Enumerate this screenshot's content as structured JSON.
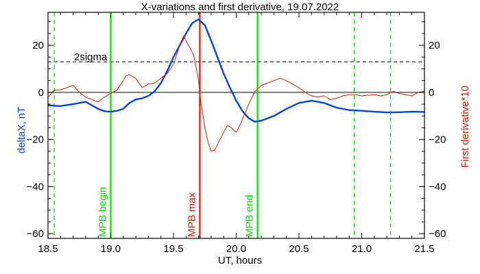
{
  "chart_data": {
    "type": "line",
    "title": "X-variations and first derivative, 19.07.2022",
    "xlabel": "UT, hours",
    "ylabel_left": "deltaX, nT",
    "ylabel_right": "First derivative*10",
    "xlim": [
      18.5,
      21.5
    ],
    "ylim": [
      -62,
      34
    ],
    "x_ticks": [
      18.5,
      19.0,
      19.5,
      20.0,
      20.5,
      21.0,
      21.5
    ],
    "x_tick_labels": [
      "18.5",
      "19.0",
      "19.5",
      "20.0",
      "20.5",
      "21.0",
      "21.5"
    ],
    "y_ticks": [
      20,
      0,
      -20,
      -40,
      -60
    ],
    "y_tick_labels": [
      "20",
      "0",
      "−20",
      "−40",
      "−60"
    ],
    "sigma_line": {
      "label": "2sigma",
      "y": 13
    },
    "zero_line": {
      "y": 0
    },
    "vlines": [
      {
        "x": 18.55,
        "style": "dashed",
        "color": "#00dd00",
        "label": ""
      },
      {
        "x": 19.0,
        "style": "solid",
        "color": "#00dd00",
        "label": "MPB begin"
      },
      {
        "x": 19.71,
        "style": "solid",
        "color": "#ee1100",
        "label": "MPB max"
      },
      {
        "x": 20.17,
        "style": "solid",
        "color": "#00dd00",
        "label": "MPB end"
      },
      {
        "x": 20.94,
        "style": "dashed",
        "color": "#00dd00",
        "label": ""
      },
      {
        "x": 21.23,
        "style": "dashed",
        "color": "#00dd00",
        "label": ""
      }
    ],
    "series": [
      {
        "axis": "left",
        "color": "#0044dd",
        "x": [
          18.5,
          18.6,
          18.7,
          18.8,
          18.85,
          18.9,
          18.95,
          19.0,
          19.05,
          19.1,
          19.15,
          19.2,
          19.25,
          19.3,
          19.35,
          19.4,
          19.45,
          19.5,
          19.55,
          19.6,
          19.65,
          19.7,
          19.75,
          19.8,
          19.85,
          19.9,
          19.95,
          20.0,
          20.05,
          20.1,
          20.15,
          20.2,
          20.3,
          20.4,
          20.5,
          20.6,
          20.7,
          20.8,
          20.9,
          21.0,
          21.1,
          21.2,
          21.3,
          21.4,
          21.5
        ],
        "values": [
          -5.5,
          -5.8,
          -5.0,
          -4.0,
          -5.5,
          -7.0,
          -8.0,
          -8.2,
          -7.8,
          -7.0,
          -4.5,
          -3.0,
          -2.5,
          -1.5,
          0.5,
          4.0,
          9.0,
          15.0,
          20.0,
          25.0,
          29.5,
          31.0,
          28.5,
          22.0,
          15.0,
          8.0,
          2.0,
          -3.5,
          -8.0,
          -11.0,
          -12.5,
          -12.0,
          -10.0,
          -7.0,
          -4.5,
          -3.5,
          -4.5,
          -6.5,
          -7.5,
          -7.8,
          -8.2,
          -8.5,
          -8.4,
          -8.2,
          -8.3
        ]
      },
      {
        "axis": "right",
        "color": "#cc2200",
        "x": [
          18.5,
          18.55,
          18.6,
          18.65,
          18.7,
          18.75,
          18.8,
          18.85,
          18.9,
          18.95,
          19.0,
          19.05,
          19.1,
          19.12,
          19.15,
          19.2,
          19.25,
          19.3,
          19.35,
          19.4,
          19.45,
          19.5,
          19.55,
          19.58,
          19.6,
          19.63,
          19.66,
          19.7,
          19.72,
          19.75,
          19.78,
          19.8,
          19.83,
          19.86,
          19.9,
          19.93,
          19.96,
          20.0,
          20.03,
          20.06,
          20.1,
          20.15,
          20.2,
          20.25,
          20.3,
          20.35,
          20.4,
          20.45,
          20.5,
          20.55,
          20.6,
          20.65,
          20.7,
          20.75,
          20.8,
          20.85,
          20.9,
          20.95,
          21.0,
          21.05,
          21.1,
          21.15,
          21.2,
          21.25,
          21.3,
          21.35,
          21.4,
          21.45,
          21.5
        ],
        "values": [
          -2.0,
          1.0,
          1.0,
          2.0,
          3.0,
          0.0,
          -2.0,
          -3.0,
          -4.0,
          -2.0,
          -0.5,
          1.0,
          5.0,
          7.0,
          7.5,
          6.0,
          2.0,
          3.5,
          4.0,
          6.0,
          8.0,
          12.0,
          20.0,
          24.0,
          22.0,
          19.0,
          16.0,
          5.0,
          -5.0,
          -15.0,
          -22.0,
          -25.0,
          -24.5,
          -21.0,
          -17.0,
          -14.0,
          -15.0,
          -17.0,
          -14.0,
          -10.0,
          -5.0,
          0.5,
          3.0,
          4.0,
          5.0,
          6.0,
          5.0,
          3.5,
          2.0,
          0.0,
          -1.5,
          -2.0,
          -1.5,
          -3.0,
          -2.5,
          -1.5,
          -1.0,
          -1.0,
          -1.5,
          -1.2,
          -1.0,
          -1.5,
          -1.0,
          0.5,
          -0.5,
          -1.0,
          -1.5,
          0.0,
          0.5
        ]
      }
    ],
    "colors": {
      "axis_left_label": "#0044dd",
      "axis_right_label": "#cc2200",
      "frame": "#000000"
    }
  }
}
